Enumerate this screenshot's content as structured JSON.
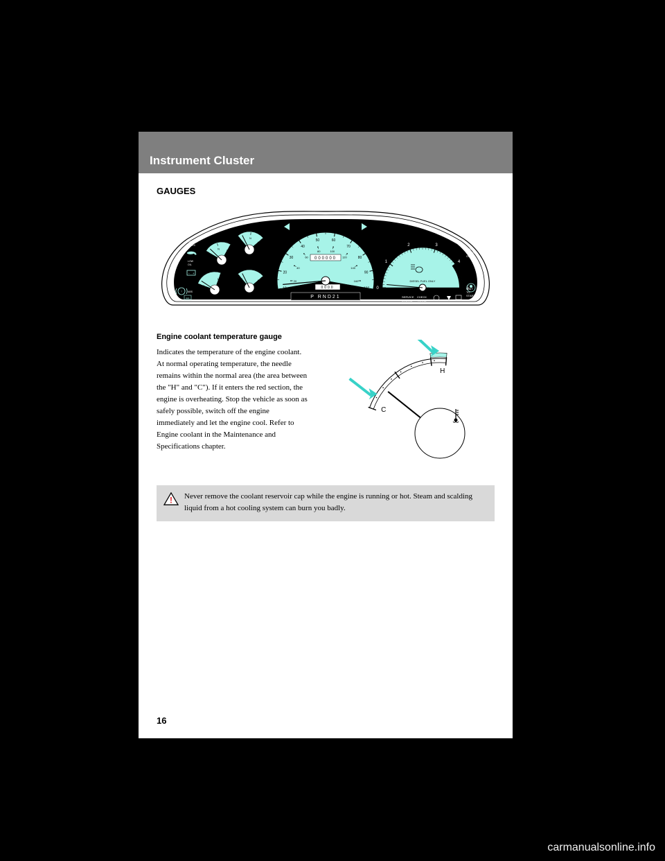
{
  "header": {
    "title": "Instrument Cluster"
  },
  "gauges_section_label": "GAUGES",
  "cluster": {
    "type": "infographic",
    "outline_stroke": "#000000",
    "background": "#ffffff",
    "cyan": "#a7f3e8",
    "speedo": {
      "unit_top_label": "km/h",
      "unit_bottom_label": "MPH",
      "outer_marks": [
        "10",
        "20",
        "30",
        "40",
        "50",
        "60",
        "70",
        "80",
        "90",
        "100"
      ],
      "inner_marks": [
        "20",
        "40",
        "60",
        "80",
        "100",
        "120",
        "140",
        "160"
      ],
      "odometer": "000000",
      "trip": "0000"
    },
    "tach": {
      "label": "RPMx1000",
      "fuel_text": "DIESEL FUEL ONLY",
      "marks": [
        "0",
        "1",
        "2",
        "3",
        "4",
        "5"
      ],
      "redzone_start": 4
    },
    "small_gauges": {
      "oil": {
        "marks": [
          "L",
          "N",
          "H"
        ]
      },
      "temp": {
        "marks": [
          "L",
          "N",
          "H"
        ]
      },
      "volt": {
        "marks": [
          "8",
          "18"
        ]
      },
      "fuel": {
        "marks": [
          "E",
          "F"
        ]
      }
    },
    "prndl": "P RND21"
  },
  "temp_section": {
    "title": "Engine coolant temperature gauge",
    "body": "Indicates the temperature of the engine coolant. At normal operating temperature, the needle remains within the normal area (the area between the \"H\" and \"C\"). If it enters the red section, the engine is overheating. Stop the vehicle as soon as safely possible, switch off the engine immediately and let the engine cool. Refer to Engine coolant in the Maintenance and Specifications chapter.",
    "gauge": {
      "type": "gauge",
      "cyan": "#a7f3e8",
      "arrow_color": "#38d2c8",
      "marks": [
        "C",
        "H"
      ],
      "needle_angle_deg": 40
    }
  },
  "warning": {
    "icon_bg": "#ffffff",
    "icon_stroke": "#000000",
    "bang_color": "#e21f26",
    "text": "Never remove the coolant reservoir cap while the engine is running or hot. Steam and scalding liquid from a hot cooling system can burn you badly."
  },
  "page_number": "16",
  "watermark": "carmanualsonline.info"
}
